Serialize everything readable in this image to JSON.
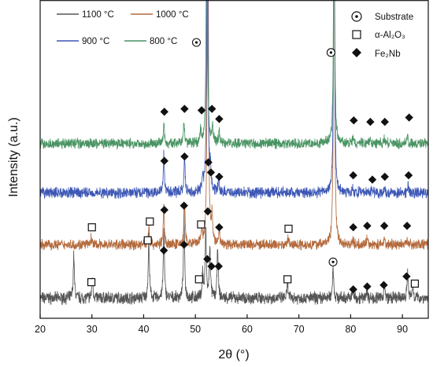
{
  "chart_data": {
    "type": "line",
    "xlabel": "2θ (°)",
    "ylabel": "Intensity (a.u.)",
    "xlim": [
      20,
      95
    ],
    "xticks": [
      20,
      30,
      40,
      50,
      60,
      70,
      80,
      90
    ],
    "y_ticks_shown": false,
    "grid": false,
    "legend_position": "top-left",
    "series": [
      {
        "name": "1100 °C",
        "color": "#555555",
        "baseline": 0.9,
        "noise": 0.35,
        "peaks": [
          [
            26.5,
            3.0
          ],
          [
            30.1,
            1.5
          ],
          [
            41.0,
            4.2
          ],
          [
            43.9,
            4.8
          ],
          [
            47.8,
            6.0
          ],
          [
            51.4,
            1.8
          ],
          [
            52.0,
            4.8
          ],
          [
            52.8,
            3.6
          ],
          [
            54.3,
            3.5
          ],
          [
            67.8,
            1.0
          ],
          [
            76.6,
            2.3
          ],
          [
            80.4,
            0.5
          ],
          [
            83.1,
            0.6
          ],
          [
            86.5,
            0.9
          ],
          [
            91.0,
            1.8
          ],
          [
            92.0,
            0.9
          ]
        ]
      },
      {
        "name": "1000 °C",
        "color": "#b46a3c",
        "baseline": 4.6,
        "noise": 0.3,
        "peaks": [
          [
            29.9,
            0.5
          ],
          [
            41.0,
            1.3
          ],
          [
            43.9,
            2.6
          ],
          [
            47.9,
            3.0
          ],
          [
            51.2,
            1.0
          ],
          [
            52.4,
            28.0
          ],
          [
            53.2,
            1.8
          ],
          [
            54.6,
            1.0
          ],
          [
            67.9,
            0.4
          ],
          [
            76.8,
            26.0
          ],
          [
            80.4,
            0.3
          ],
          [
            83.1,
            0.4
          ],
          [
            86.5,
            0.5
          ],
          [
            90.9,
            0.5
          ]
        ]
      },
      {
        "name": "900 °C",
        "color": "#3d57b5",
        "baseline": 8.2,
        "noise": 0.32,
        "peaks": [
          [
            43.9,
            2.7
          ],
          [
            47.9,
            2.6
          ],
          [
            51.4,
            1.0
          ],
          [
            52.3,
            24.0
          ],
          [
            52.9,
            1.5
          ],
          [
            54.5,
            0.9
          ],
          [
            76.8,
            22.0
          ],
          [
            80.4,
            0.3
          ],
          [
            84.2,
            0.3
          ],
          [
            86.5,
            0.3
          ],
          [
            91.1,
            0.5
          ]
        ]
      },
      {
        "name": "800 °C",
        "color": "#4a9463",
        "baseline": 11.6,
        "noise": 0.3,
        "peaks": [
          [
            43.9,
            1.5
          ],
          [
            47.8,
            1.6
          ],
          [
            51.0,
            0.9
          ],
          [
            52.2,
            20.0
          ],
          [
            53.3,
            1.2
          ],
          [
            54.6,
            0.8
          ],
          [
            76.8,
            19.0
          ],
          [
            80.4,
            0.3
          ],
          [
            83.7,
            0.3
          ],
          [
            86.5,
            0.3
          ],
          [
            91.0,
            0.5
          ]
        ]
      }
    ],
    "ylim": [
      -0.5,
      21.5
    ],
    "legend_lines": [
      [
        "1100 °C",
        "1000 °C"
      ],
      [
        "900 °C",
        "800 °C"
      ]
    ],
    "phase_legend": [
      {
        "marker": "substrate",
        "label": "Substrate"
      },
      {
        "marker": "square",
        "label": "α-Al₂O₃"
      },
      {
        "marker": "diamond",
        "label": "Fe₂Nb"
      }
    ],
    "markers": {
      "substrate": [
        [
          50.2,
          18.6
        ],
        [
          76.2,
          17.9
        ],
        [
          76.6,
          3.4
        ]
      ],
      "square": [
        [
          30.0,
          5.8
        ],
        [
          41.2,
          6.2
        ],
        [
          51.1,
          6.0
        ],
        [
          68.0,
          5.7
        ],
        [
          29.9,
          2.0
        ],
        [
          40.8,
          4.9
        ],
        [
          50.7,
          2.2
        ],
        [
          67.8,
          2.2
        ],
        [
          92.4,
          1.9
        ]
      ],
      "diamond": [
        [
          44.0,
          13.8
        ],
        [
          47.9,
          14.0
        ],
        [
          51.2,
          13.9
        ],
        [
          53.2,
          14.0
        ],
        [
          54.6,
          13.3
        ],
        [
          80.6,
          13.2
        ],
        [
          83.8,
          13.1
        ],
        [
          86.6,
          13.1
        ],
        [
          91.3,
          13.4
        ],
        [
          44.0,
          10.4
        ],
        [
          47.9,
          10.7
        ],
        [
          52.5,
          10.3
        ],
        [
          53.0,
          9.6
        ],
        [
          54.6,
          9.3
        ],
        [
          80.5,
          9.4
        ],
        [
          84.2,
          9.1
        ],
        [
          86.6,
          9.3
        ],
        [
          91.2,
          9.4
        ],
        [
          44.0,
          7.0
        ],
        [
          47.8,
          7.3
        ],
        [
          52.4,
          6.9
        ],
        [
          54.6,
          5.8
        ],
        [
          80.5,
          5.8
        ],
        [
          83.2,
          5.9
        ],
        [
          86.5,
          5.9
        ],
        [
          90.9,
          5.9
        ],
        [
          43.9,
          4.2
        ],
        [
          47.8,
          4.6
        ],
        [
          52.3,
          3.6
        ],
        [
          53.1,
          3.1
        ],
        [
          54.5,
          3.1
        ],
        [
          80.5,
          1.5
        ],
        [
          83.2,
          1.7
        ],
        [
          86.4,
          1.8
        ],
        [
          90.8,
          2.4
        ]
      ]
    }
  }
}
